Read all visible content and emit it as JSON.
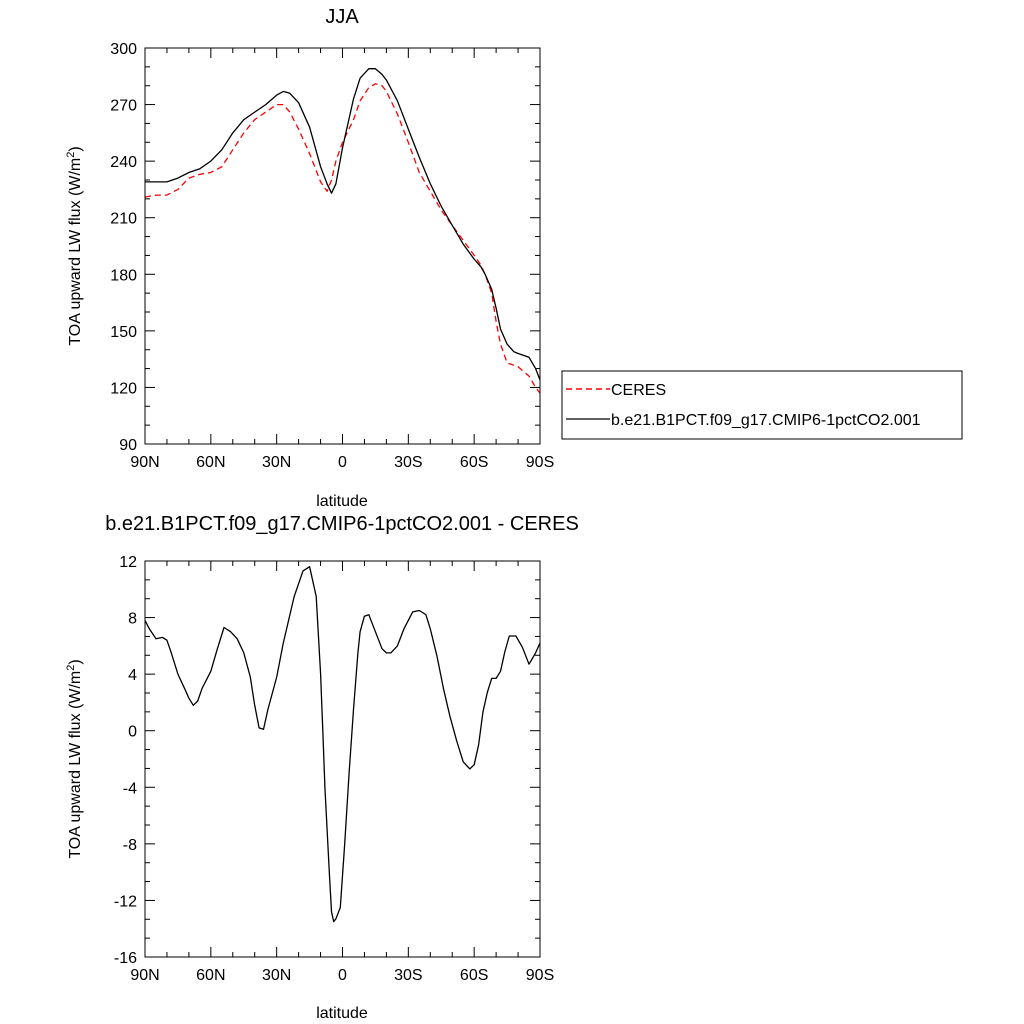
{
  "chart_data": [
    {
      "type": "line",
      "title": "JJA",
      "xlabel": "latitude",
      "ylabel": "TOA upward LW flux (W/m",
      "ylabel_sup": "2",
      "ylabel_end": ")",
      "xlim": [
        -90,
        90
      ],
      "ylim": [
        90,
        300
      ],
      "xticks": [
        -90,
        -60,
        -30,
        0,
        30,
        60,
        90
      ],
      "xtick_labels": [
        "90N",
        "60N",
        "30N",
        "0",
        "30S",
        "60S",
        "90S"
      ],
      "yticks": [
        90,
        120,
        150,
        180,
        210,
        240,
        270,
        300
      ],
      "ytick_labels": [
        "90",
        "120",
        "150",
        "180",
        "210",
        "240",
        "270",
        "300"
      ],
      "grid": false,
      "legend_position": "right",
      "series": [
        {
          "name": "CERES",
          "color": "#ff0000",
          "dash": "dashed",
          "x": [
            -90,
            -85,
            -80,
            -75,
            -70,
            -65,
            -60,
            -55,
            -50,
            -45,
            -40,
            -35,
            -30,
            -27,
            -24,
            -20,
            -15,
            -10,
            -7,
            -5,
            -3,
            0,
            5,
            8,
            12,
            15,
            18,
            20,
            25,
            30,
            35,
            40,
            45,
            50,
            55,
            60,
            63,
            65,
            68,
            70,
            72,
            75,
            80,
            85,
            88,
            90
          ],
          "y": [
            221,
            222,
            222,
            225,
            231,
            233,
            234,
            237,
            246,
            255,
            262,
            266,
            270,
            270,
            266,
            257,
            244,
            229,
            224,
            230,
            240,
            250,
            262,
            272,
            279,
            281,
            280,
            277,
            265,
            250,
            234,
            224,
            214,
            206,
            198,
            190,
            185,
            180,
            170,
            155,
            143,
            133,
            131,
            126,
            120,
            117
          ]
        },
        {
          "name": "b.e21.B1PCT.f09_g17.CMIP6-1pctCO2.001",
          "color": "#000000",
          "dash": "solid",
          "x": [
            -90,
            -85,
            -80,
            -75,
            -70,
            -65,
            -60,
            -55,
            -50,
            -45,
            -40,
            -35,
            -30,
            -27,
            -24,
            -20,
            -15,
            -10,
            -7,
            -5,
            -3,
            0,
            5,
            8,
            12,
            15,
            18,
            20,
            25,
            30,
            35,
            40,
            45,
            50,
            55,
            60,
            63,
            65,
            68,
            70,
            72,
            75,
            78,
            80,
            85,
            88,
            90
          ],
          "y": [
            229,
            229,
            229,
            231,
            234,
            236,
            240,
            246,
            255,
            262,
            266,
            270,
            275,
            277,
            276,
            271,
            258,
            237,
            228,
            223,
            228,
            247,
            273,
            284,
            289,
            289,
            286,
            283,
            272,
            257,
            242,
            228,
            216,
            206,
            196,
            188,
            184,
            180,
            172,
            162,
            151,
            143,
            139,
            138,
            136,
            130,
            124
          ]
        }
      ]
    },
    {
      "type": "line",
      "title": "b.e21.B1PCT.f09_g17.CMIP6-1pctCO2.001 - CERES",
      "xlabel": "latitude",
      "ylabel": "TOA upward LW flux (W/m",
      "ylabel_sup": "2",
      "ylabel_end": ")",
      "xlim": [
        -90,
        90
      ],
      "ylim": [
        -16,
        12
      ],
      "xticks": [
        -90,
        -60,
        -30,
        0,
        30,
        60,
        90
      ],
      "xtick_labels": [
        "90N",
        "60N",
        "30N",
        "0",
        "30S",
        "60S",
        "90S"
      ],
      "yticks": [
        -16,
        -12,
        -8,
        -4,
        0,
        4,
        8,
        12
      ],
      "ytick_labels": [
        "-16",
        "-12",
        "-8",
        "-4",
        "0",
        "4",
        "8",
        "12"
      ],
      "grid": false,
      "series": [
        {
          "color": "#000000",
          "dash": "solid",
          "x": [
            -90,
            -88,
            -85,
            -82,
            -80,
            -78,
            -75,
            -72,
            -70,
            -68,
            -66,
            -64,
            -60,
            -57,
            -54,
            -51,
            -48,
            -45,
            -42,
            -40,
            -38,
            -36,
            -34,
            -30,
            -27,
            -22,
            -18,
            -15,
            -12,
            -10,
            -9,
            -8,
            -6,
            -5,
            -4,
            -3,
            -1,
            1,
            3,
            5,
            7,
            8,
            10,
            12,
            15,
            18,
            20,
            22,
            25,
            28,
            30,
            32,
            35,
            38,
            40,
            43,
            46,
            49,
            52,
            55,
            58,
            60,
            62,
            64,
            66,
            68,
            70,
            72,
            74,
            76,
            79,
            82,
            85,
            88,
            90
          ],
          "y": [
            7.8,
            7.2,
            6.5,
            6.6,
            6.4,
            5.5,
            4.0,
            3.0,
            2.3,
            1.8,
            2.1,
            3.0,
            4.2,
            5.8,
            7.3,
            7.0,
            6.5,
            5.5,
            3.8,
            1.8,
            0.2,
            0.1,
            1.5,
            3.8,
            6.2,
            9.5,
            11.3,
            11.6,
            9.5,
            4.0,
            0.0,
            -4.0,
            -10.0,
            -12.8,
            -13.5,
            -13.3,
            -12.5,
            -8.0,
            -3.0,
            1.5,
            5.5,
            7.0,
            8.1,
            8.2,
            7.0,
            5.8,
            5.5,
            5.5,
            6.0,
            7.2,
            7.8,
            8.4,
            8.5,
            8.2,
            7.2,
            5.3,
            3.0,
            1.0,
            -0.7,
            -2.2,
            -2.7,
            -2.4,
            -1.0,
            1.3,
            2.7,
            3.7,
            3.7,
            4.2,
            5.6,
            6.7,
            6.7,
            5.9,
            4.7,
            5.5,
            6.2
          ]
        }
      ]
    }
  ]
}
